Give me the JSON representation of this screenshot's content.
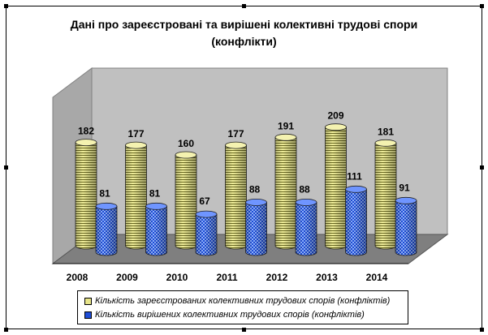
{
  "chart_data": {
    "type": "bar",
    "title_line1": "Дані про зареєстровані та вирішені колективні трудові спори",
    "title_line2": "(конфлікти)",
    "categories": [
      "2008",
      "2009",
      "2010",
      "2011",
      "2012",
      "2013",
      "2014"
    ],
    "series": [
      {
        "name": "Кількість зареєстрованих колективних трудових спорів (конфліктів)",
        "values": [
          182,
          177,
          160,
          177,
          191,
          209,
          181
        ],
        "color": "#e8e58a"
      },
      {
        "name": "Кількість вирішених колективних трудових спорів (конфліктів)",
        "values": [
          81,
          81,
          67,
          88,
          88,
          111,
          91
        ],
        "color": "#1f4ed8"
      }
    ],
    "ylim": [
      0,
      240
    ],
    "grid": false,
    "legend_position": "bottom",
    "wall_color": "#c0c0c0",
    "floor_color": "#808080"
  }
}
